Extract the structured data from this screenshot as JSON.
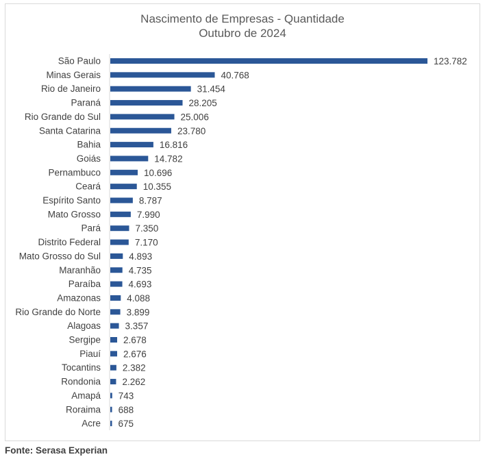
{
  "chart_data": {
    "type": "bar",
    "orientation": "horizontal",
    "title": "Nascimento de Empresas - Quantidade",
    "subtitle": "Outubro de 2024",
    "categories": [
      "São Paulo",
      "Minas Gerais",
      "Rio de Janeiro",
      "Paraná",
      "Rio Grande do Sul",
      "Santa Catarina",
      "Bahia",
      "Goiás",
      "Pernambuco",
      "Ceará",
      "Espírito Santo",
      "Mato Grosso",
      "Pará",
      "Distrito Federal",
      "Mato Grosso do Sul",
      "Maranhão",
      "Paraíba",
      "Amazonas",
      "Rio Grande do Norte",
      "Alagoas",
      "Sergipe",
      "Piauí",
      "Tocantins",
      "Rondonia",
      "Amapá",
      "Roraima",
      "Acre"
    ],
    "values": [
      123782,
      40768,
      31454,
      28205,
      25006,
      23780,
      16816,
      14782,
      10696,
      10355,
      8787,
      7990,
      7350,
      7170,
      4893,
      4735,
      4693,
      4088,
      3899,
      3357,
      2678,
      2676,
      2382,
      2262,
      743,
      688,
      675
    ],
    "data_labels": [
      "123.782",
      "40.768",
      "31.454",
      "28.205",
      "25.006",
      "23.780",
      "16.816",
      "14.782",
      "10.696",
      "10.355",
      "8.787",
      "7.990",
      "7.350",
      "7.170",
      "4.893",
      "4.735",
      "4.693",
      "4.088",
      "3.899",
      "3.357",
      "2.678",
      "2.676",
      "2.382",
      "2.262",
      "743",
      "688",
      "675"
    ],
    "xlim": [
      0,
      123782
    ],
    "grid": false,
    "bar_color": "#2b5797",
    "source": "Fonte: Serasa Experian"
  }
}
